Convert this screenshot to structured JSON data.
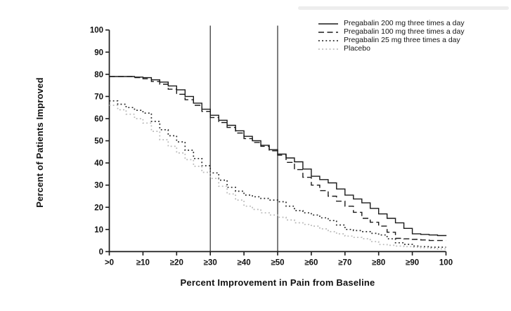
{
  "figure": {
    "background": "#ffffff",
    "axis_color": "#1c1c1c",
    "reference_line_color": "#3a3a3a"
  },
  "chart_data": {
    "type": "line",
    "title": "",
    "xlabel": "Percent Improvement in Pain from Baseline",
    "ylabel": "Percent of Patients Improved",
    "xlim": [
      0,
      100
    ],
    "ylim": [
      0,
      100
    ],
    "grid": false,
    "legend_position": "top-right",
    "x_tick_labels": [
      ">0",
      "≥10",
      "≥20",
      "≥30",
      "≥40",
      "≥50",
      "≥60",
      "≥70",
      "≥80",
      "≥90",
      "100"
    ],
    "x_tick_values": [
      0,
      10,
      20,
      30,
      40,
      50,
      60,
      70,
      80,
      90,
      100
    ],
    "y_tick_labels": [
      "0",
      "10",
      "20",
      "30",
      "40",
      "50",
      "60",
      "70",
      "80",
      "90",
      "100"
    ],
    "y_tick_values": [
      0,
      10,
      20,
      30,
      40,
      50,
      60,
      70,
      80,
      90,
      100
    ],
    "reference_lines_x": [
      30,
      50
    ],
    "x": [
      0,
      5,
      10,
      15,
      20,
      25,
      30,
      35,
      40,
      45,
      50,
      55,
      60,
      65,
      70,
      75,
      80,
      85,
      90,
      95,
      100
    ],
    "series": [
      {
        "name": "Pregabalin 200 mg three times a day",
        "style": "solid",
        "color": "#1a1a1a",
        "values": [
          79,
          79,
          78.5,
          76.5,
          73,
          67,
          61.5,
          57,
          52,
          48,
          44,
          40.5,
          34,
          31,
          25.5,
          22,
          17,
          13,
          8,
          7.5,
          7
        ]
      },
      {
        "name": "Pregabalin 100 mg three times a day",
        "style": "dashed",
        "color": "#1a1a1a",
        "values": [
          79,
          79,
          78,
          75.5,
          71,
          66,
          60.5,
          56,
          51,
          47.5,
          43.5,
          37,
          30,
          25,
          20.5,
          15,
          11.5,
          6,
          5.5,
          5,
          5
        ]
      },
      {
        "name": "Pregabalin 25 mg three times a day",
        "style": "dotted",
        "color": "#262626",
        "values": [
          68,
          65,
          62.5,
          55,
          49.5,
          42,
          35.5,
          29,
          25.5,
          24,
          22.5,
          18.5,
          16.5,
          14,
          10,
          9,
          7.5,
          4,
          2.5,
          2,
          2
        ]
      },
      {
        "name": "Placebo",
        "style": "dotted",
        "color": "#b7b7b7",
        "values": [
          66,
          62,
          58,
          50.5,
          44.5,
          38.5,
          33,
          26,
          20.5,
          17.5,
          15.5,
          13,
          11.5,
          9,
          7,
          5.8,
          3.2,
          2.5,
          2,
          1.5,
          1
        ]
      }
    ]
  }
}
